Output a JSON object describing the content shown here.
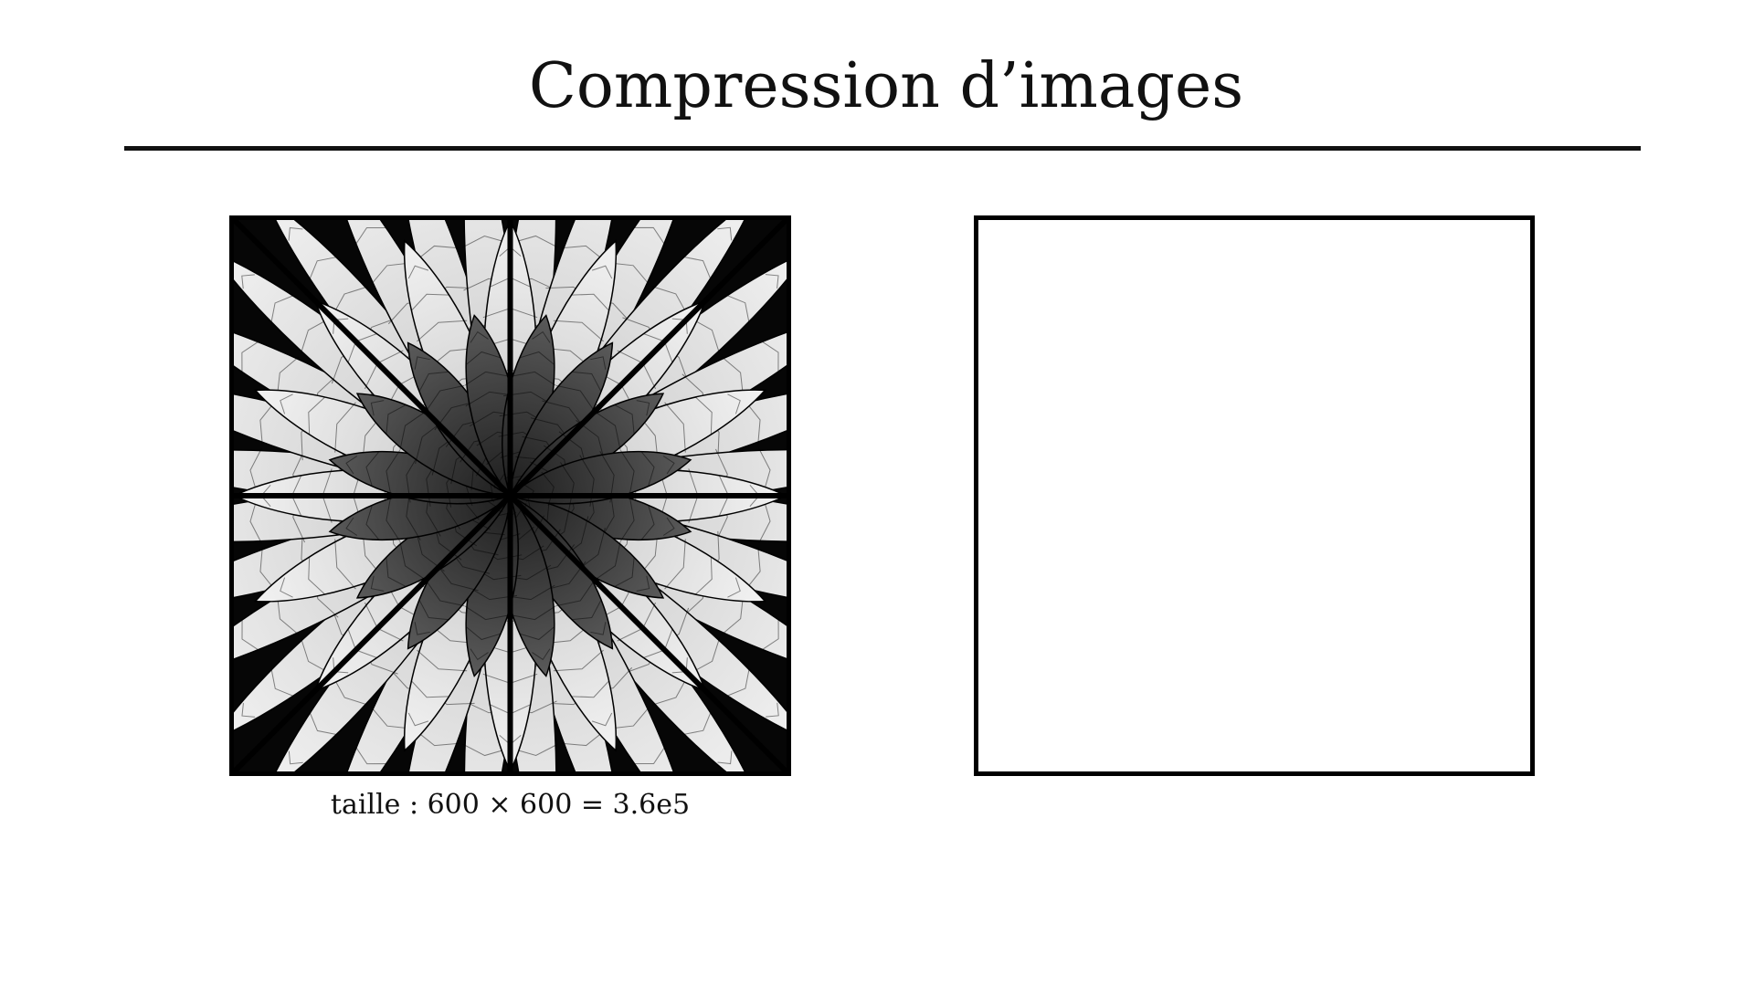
{
  "slide": {
    "title": "Compression d’images",
    "original_image": {
      "caption": "taille : 600 × 600 = 3.6e5"
    },
    "compressed_image": {}
  }
}
